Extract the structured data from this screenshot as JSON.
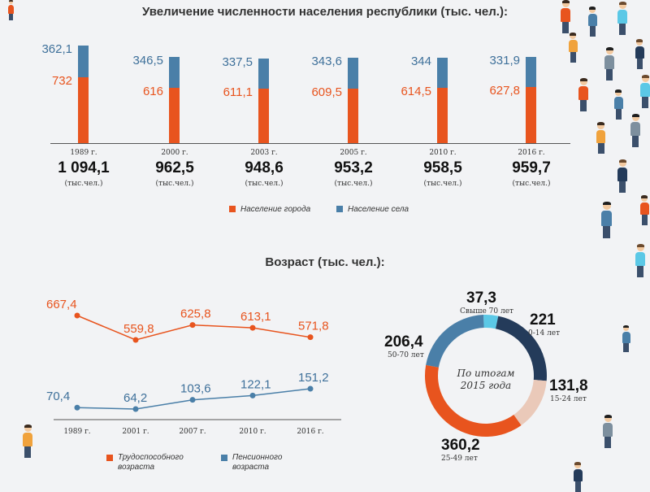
{
  "chart_data": [
    {
      "type": "bar",
      "title": "Увеличение численности населения республики (тыс. чел.):",
      "categories": [
        "1989 г.",
        "2000 г.",
        "2003 г.",
        "2005 г.",
        "2010 г.",
        "2016 г."
      ],
      "series": [
        {
          "name": "Население города",
          "values": [
            732,
            616,
            611.1,
            609.5,
            614.5,
            627.8
          ],
          "labels": [
            "732",
            "616",
            "611,1",
            "609,5",
            "614,5",
            "627,8"
          ]
        },
        {
          "name": "Население села",
          "values": [
            362.1,
            346.5,
            337.5,
            343.6,
            344,
            331.9
          ],
          "labels": [
            "362,1",
            "346,5",
            "337,5",
            "343,6",
            "344",
            "331,9"
          ]
        }
      ],
      "totals": [
        "1 094,1",
        "962,5",
        "948,6",
        "953,2",
        "958,5",
        "959,7"
      ],
      "total_unit": "(тыс.чел.)",
      "stacked": true
    },
    {
      "type": "line",
      "title": "Возраст (тыс. чел.):",
      "categories": [
        "1989 г.",
        "2001 г.",
        "2007 г.",
        "2010 г.",
        "2016 г."
      ],
      "series": [
        {
          "name": "Трудоспособного возраста",
          "values": [
            667.4,
            559.8,
            625.8,
            613.1,
            571.8
          ],
          "labels": [
            "667,4",
            "559,8",
            "625,8",
            "613,1",
            "571,8"
          ]
        },
        {
          "name": "Пенсионного возраста",
          "values": [
            70.4,
            64.2,
            103.6,
            122.1,
            151.2
          ],
          "labels": [
            "70,4",
            "64,2",
            "103,6",
            "122,1",
            "151,2"
          ]
        }
      ],
      "legend_lines": [
        [
          "Трудоспособного",
          "возраста"
        ],
        [
          "Пенсионного",
          "возраста"
        ]
      ]
    },
    {
      "type": "pie",
      "center_text": [
        "По итогам",
        "2015 года"
      ],
      "slices": [
        {
          "label": "Свыше 70 лет",
          "value": 37.3,
          "text": "37,3",
          "color": "#5bc8e6"
        },
        {
          "label": "0-14 лет",
          "value": 221,
          "text": "221",
          "color": "#243b5a"
        },
        {
          "label": "15-24 лет",
          "value": 131.8,
          "text": "131,8",
          "color": "#eac9b9"
        },
        {
          "label": "25-49 лет",
          "value": 360.2,
          "text": "360,2",
          "color": "#e8541e"
        },
        {
          "label": "50-70 лет",
          "value": 206.4,
          "text": "206,4",
          "color": "#4a7fa8"
        }
      ]
    }
  ],
  "colors": {
    "urban": "#e8541e",
    "rural": "#4a7fa8",
    "work": "#e8541e",
    "pension": "#4a7fa8"
  }
}
